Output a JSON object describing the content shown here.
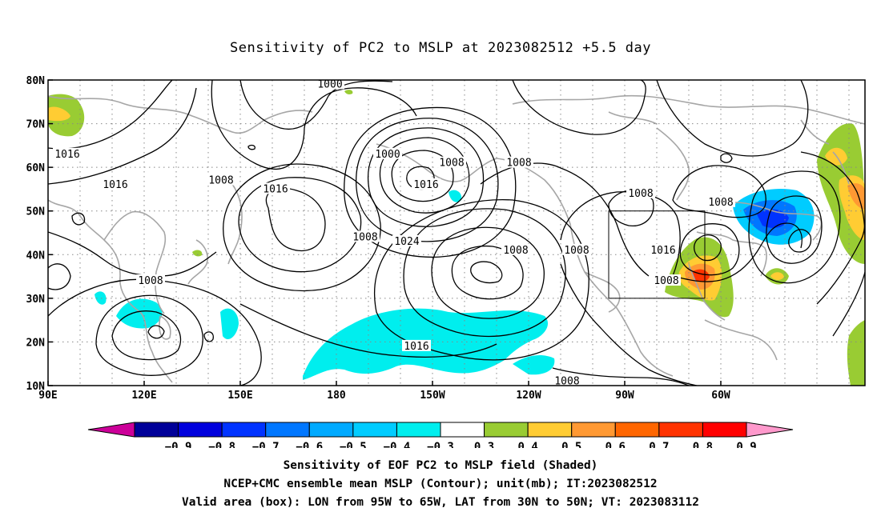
{
  "title": "Sensitivity of PC2 to MSLP at 2023082512 +5.5 day",
  "map": {
    "lat_labels": [
      "80N",
      "70N",
      "60N",
      "50N",
      "40N",
      "30N",
      "20N",
      "10N"
    ],
    "lon_labels": [
      "90E",
      "120E",
      "150E",
      "180",
      "150W",
      "120W",
      "90W",
      "60W"
    ],
    "lon_range_deg_east": [
      90,
      345
    ],
    "lat_range_deg": [
      10,
      80
    ],
    "graticule": "dotted grid every 10 degrees",
    "valid_box": {
      "lon_west": -95,
      "lon_east": -65,
      "lat_south": 30,
      "lat_north": 50
    },
    "contour_labels": [
      {
        "text": "1000",
        "lon": 178,
        "lat": 79
      },
      {
        "text": "1000",
        "lon": 196,
        "lat": 63
      },
      {
        "text": "1016",
        "lon": 96,
        "lat": 63
      },
      {
        "text": "1016",
        "lon": 111,
        "lat": 56
      },
      {
        "text": "1008",
        "lon": 144,
        "lat": 57
      },
      {
        "text": "1016",
        "lon": 161,
        "lat": 55
      },
      {
        "text": "1008",
        "lon": 216,
        "lat": 61
      },
      {
        "text": "1008",
        "lon": 237,
        "lat": 61
      },
      {
        "text": "1016",
        "lon": 208,
        "lat": 56
      },
      {
        "text": "1024",
        "lon": 202,
        "lat": 43
      },
      {
        "text": "1008",
        "lon": 189,
        "lat": 44
      },
      {
        "text": "1008",
        "lon": 236,
        "lat": 41
      },
      {
        "text": "1008",
        "lon": 255,
        "lat": 41
      },
      {
        "text": "1008",
        "lon": 275,
        "lat": 54
      },
      {
        "text": "1008",
        "lon": 300,
        "lat": 52
      },
      {
        "text": "1016",
        "lon": 282,
        "lat": 41
      },
      {
        "text": "1008",
        "lon": 283,
        "lat": 34
      },
      {
        "text": "1008",
        "lon": 122,
        "lat": 34
      },
      {
        "text": "1016",
        "lon": 205,
        "lat": 19
      },
      {
        "text": "1008",
        "lon": 252,
        "lat": 11
      }
    ]
  },
  "colorbar": {
    "labels": [
      "−0.9",
      "−0.8",
      "−0.7",
      "−0.6",
      "−0.5",
      "−0.4",
      "−0.3",
      "0.3",
      "0.4",
      "0.5",
      "0.6",
      "0.7",
      "0.8",
      "0.9"
    ],
    "colors": [
      "#cc0099",
      "#000099",
      "#0000dd",
      "#0033ff",
      "#0077ff",
      "#00aaff",
      "#00ccff",
      "#00eeee",
      "#ffffff",
      "#99cc33",
      "#ffcc33",
      "#ff9933",
      "#ff6600",
      "#ff3300",
      "#ff0000",
      "#ff99cc"
    ]
  },
  "captions": {
    "line1": "Sensitivity of EOF PC2 to MSLP field (Shaded)",
    "line2": "NCEP+CMC ensemble mean MSLP (Contour); unit(mb); IT:2023082512",
    "line3": "Valid area (box): LON from 95W to 65W, LAT from 30N to 50N; VT: 2023083112"
  }
}
